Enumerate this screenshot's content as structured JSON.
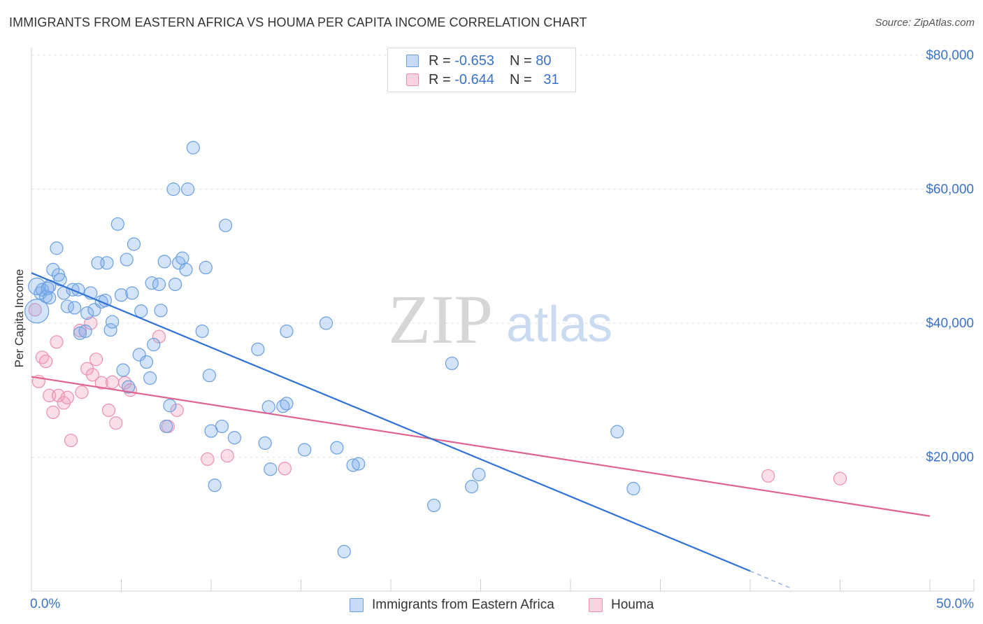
{
  "title": "IMMIGRANTS FROM EASTERN AFRICA VS HOUMA PER CAPITA INCOME CORRELATION CHART",
  "source": "Source: ZipAtlas.com",
  "watermark": {
    "zip": "ZIP",
    "atlas": "atlas"
  },
  "legend_top": {
    "rows": [
      {
        "r_label": "R =",
        "r_value": "-0.653",
        "n_label": "N =",
        "n_value": "80",
        "color": "#6a9fe0"
      },
      {
        "r_label": "R =",
        "r_value": "-0.644",
        "n_label": "N =",
        "n_value": "31",
        "color": "#ec8fb0"
      }
    ]
  },
  "legend_bottom": [
    {
      "label": "Immigrants from Eastern Africa",
      "color": "#6a9fe0"
    },
    {
      "label": "Houma",
      "color": "#ec8fb0"
    }
  ],
  "chart_data": {
    "type": "scatter",
    "title": "IMMIGRANTS FROM EASTERN AFRICA VS HOUMA PER CAPITA INCOME CORRELATION CHART",
    "xlabel": "",
    "ylabel": "Per Capita Income",
    "xlim": [
      0,
      50
    ],
    "ylim": [
      0,
      80000
    ],
    "x_tick_labels": [
      "0.0%",
      "50.0%"
    ],
    "y_ticks": [
      20000,
      40000,
      60000,
      80000
    ],
    "y_tick_labels": [
      "$20,000",
      "$40,000",
      "$60,000",
      "$80,000"
    ],
    "grid": true,
    "legend_position": "bottom",
    "series": [
      {
        "name": "Immigrants from Eastern Africa",
        "color": "#6a9fe0",
        "trend": {
          "x": [
            0,
            40
          ],
          "y": [
            47500,
            3000
          ]
        },
        "trend_extension": {
          "x": [
            40,
            42.2
          ],
          "y": [
            3000,
            500
          ]
        },
        "points": [
          [
            0.3,
            41800
          ],
          [
            0.3,
            45500
          ],
          [
            0.5,
            44500
          ],
          [
            0.6,
            45000
          ],
          [
            0.8,
            44000
          ],
          [
            1.0,
            45500
          ],
          [
            1.2,
            48000
          ],
          [
            1.4,
            51200
          ],
          [
            1.5,
            47200
          ],
          [
            1.8,
            44500
          ],
          [
            2.0,
            42500
          ],
          [
            2.3,
            45000
          ],
          [
            2.6,
            45000
          ],
          [
            2.7,
            38500
          ],
          [
            3.0,
            38800
          ],
          [
            3.1,
            41500
          ],
          [
            3.3,
            44500
          ],
          [
            3.5,
            42000
          ],
          [
            3.7,
            49000
          ],
          [
            3.9,
            43200
          ],
          [
            4.1,
            43400
          ],
          [
            4.2,
            49000
          ],
          [
            4.4,
            39000
          ],
          [
            4.5,
            40200
          ],
          [
            4.8,
            54800
          ],
          [
            5.0,
            44200
          ],
          [
            5.1,
            33000
          ],
          [
            5.3,
            49500
          ],
          [
            5.4,
            30500
          ],
          [
            5.6,
            44500
          ],
          [
            5.7,
            51800
          ],
          [
            6.0,
            35300
          ],
          [
            6.1,
            41800
          ],
          [
            6.4,
            34200
          ],
          [
            6.6,
            31800
          ],
          [
            6.7,
            46000
          ],
          [
            6.8,
            36800
          ],
          [
            7.1,
            45800
          ],
          [
            7.2,
            41900
          ],
          [
            7.4,
            49200
          ],
          [
            7.5,
            24600
          ],
          [
            7.7,
            27700
          ],
          [
            7.9,
            60000
          ],
          [
            8.0,
            45800
          ],
          [
            8.2,
            49000
          ],
          [
            8.4,
            49700
          ],
          [
            8.6,
            48000
          ],
          [
            8.7,
            60000
          ],
          [
            9.0,
            66200
          ],
          [
            9.5,
            38800
          ],
          [
            9.7,
            48300
          ],
          [
            9.9,
            32200
          ],
          [
            10.0,
            23900
          ],
          [
            10.2,
            15800
          ],
          [
            10.6,
            24600
          ],
          [
            10.8,
            54600
          ],
          [
            11.3,
            22900
          ],
          [
            12.6,
            36100
          ],
          [
            13.0,
            22100
          ],
          [
            13.2,
            27500
          ],
          [
            13.3,
            18200
          ],
          [
            14.0,
            27600
          ],
          [
            14.2,
            28000
          ],
          [
            14.2,
            38800
          ],
          [
            15.2,
            21100
          ],
          [
            16.4,
            40000
          ],
          [
            17.0,
            21400
          ],
          [
            17.4,
            5900
          ],
          [
            17.9,
            18800
          ],
          [
            18.2,
            19000
          ],
          [
            22.4,
            12800
          ],
          [
            23.4,
            34000
          ],
          [
            24.5,
            15600
          ],
          [
            24.9,
            17400
          ],
          [
            32.6,
            23800
          ],
          [
            33.5,
            15300
          ],
          [
            1.0,
            43800
          ],
          [
            2.4,
            42300
          ],
          [
            1.6,
            46500
          ],
          [
            0.9,
            45200
          ]
        ]
      },
      {
        "name": "Houma",
        "color": "#ec8fb0",
        "trend": {
          "x": [
            0,
            50
          ],
          "y": [
            32000,
            11200
          ]
        },
        "points": [
          [
            0.2,
            42000
          ],
          [
            0.4,
            31300
          ],
          [
            0.6,
            34900
          ],
          [
            0.8,
            34300
          ],
          [
            1.0,
            29200
          ],
          [
            1.2,
            26700
          ],
          [
            1.4,
            37200
          ],
          [
            1.5,
            29200
          ],
          [
            1.8,
            28100
          ],
          [
            2.0,
            28900
          ],
          [
            2.2,
            22500
          ],
          [
            2.7,
            38900
          ],
          [
            2.8,
            29700
          ],
          [
            3.1,
            33200
          ],
          [
            3.3,
            40000
          ],
          [
            3.4,
            32300
          ],
          [
            3.6,
            34600
          ],
          [
            3.9,
            31100
          ],
          [
            4.3,
            27000
          ],
          [
            4.5,
            31200
          ],
          [
            4.7,
            25100
          ],
          [
            5.2,
            31100
          ],
          [
            5.5,
            30000
          ],
          [
            7.1,
            38000
          ],
          [
            7.6,
            24600
          ],
          [
            8.1,
            27000
          ],
          [
            9.8,
            19700
          ],
          [
            10.9,
            20200
          ],
          [
            14.1,
            18300
          ],
          [
            41.0,
            17200
          ],
          [
            45.0,
            16800
          ]
        ]
      }
    ]
  }
}
